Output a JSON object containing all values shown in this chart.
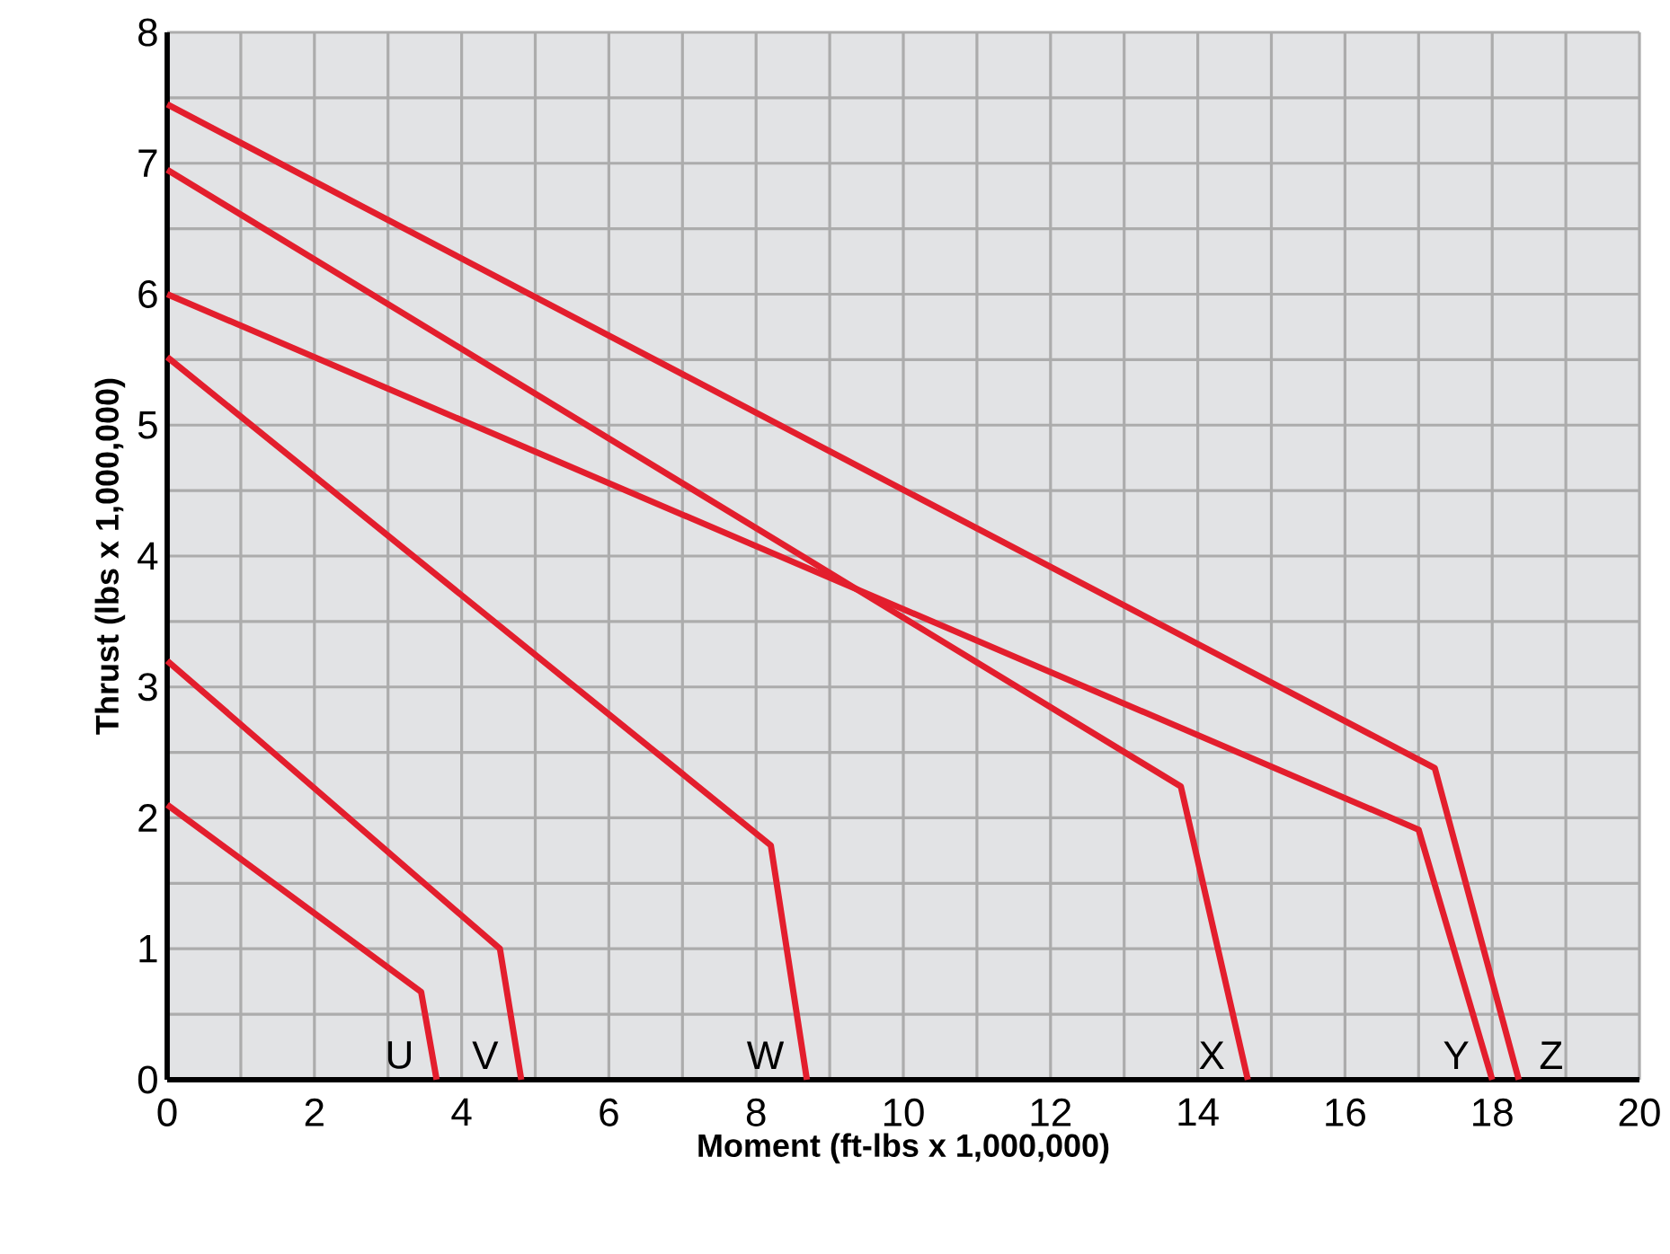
{
  "chart_data": {
    "type": "line",
    "xlabel": "Moment (ft-lbs x 1,000,000)",
    "ylabel": "Thrust (lbs x 1,000,000)",
    "xlim": [
      0,
      20
    ],
    "ylim": [
      0,
      8
    ],
    "xticks": [
      0,
      2,
      4,
      6,
      8,
      10,
      12,
      14,
      16,
      18,
      20
    ],
    "yticks": [
      0,
      1,
      2,
      3,
      4,
      5,
      6,
      7,
      8
    ],
    "grid": true,
    "marker": "none",
    "line_style": "solid",
    "series": [
      {
        "name": "U",
        "color": "#e31e2d",
        "x": [
          0,
          3.45,
          3.66
        ],
        "values": [
          2.1,
          0.67,
          0
        ]
      },
      {
        "name": "V",
        "color": "#e31e2d",
        "x": [
          0,
          4.52,
          4.81
        ],
        "values": [
          3.2,
          1.0,
          0
        ]
      },
      {
        "name": "W",
        "color": "#e31e2d",
        "x": [
          0,
          8.2,
          8.69
        ],
        "values": [
          5.52,
          1.79,
          0
        ]
      },
      {
        "name": "X",
        "color": "#e31e2d",
        "x": [
          0,
          13.77,
          14.68
        ],
        "values": [
          6.95,
          2.24,
          0
        ]
      },
      {
        "name": "Y",
        "color": "#e31e2d",
        "x": [
          0,
          17.0,
          18.0
        ],
        "values": [
          6.0,
          1.91,
          0
        ]
      },
      {
        "name": "Z",
        "color": "#e31e2d",
        "x": [
          0,
          17.22,
          18.36
        ],
        "values": [
          7.45,
          2.38,
          0
        ]
      }
    ]
  }
}
